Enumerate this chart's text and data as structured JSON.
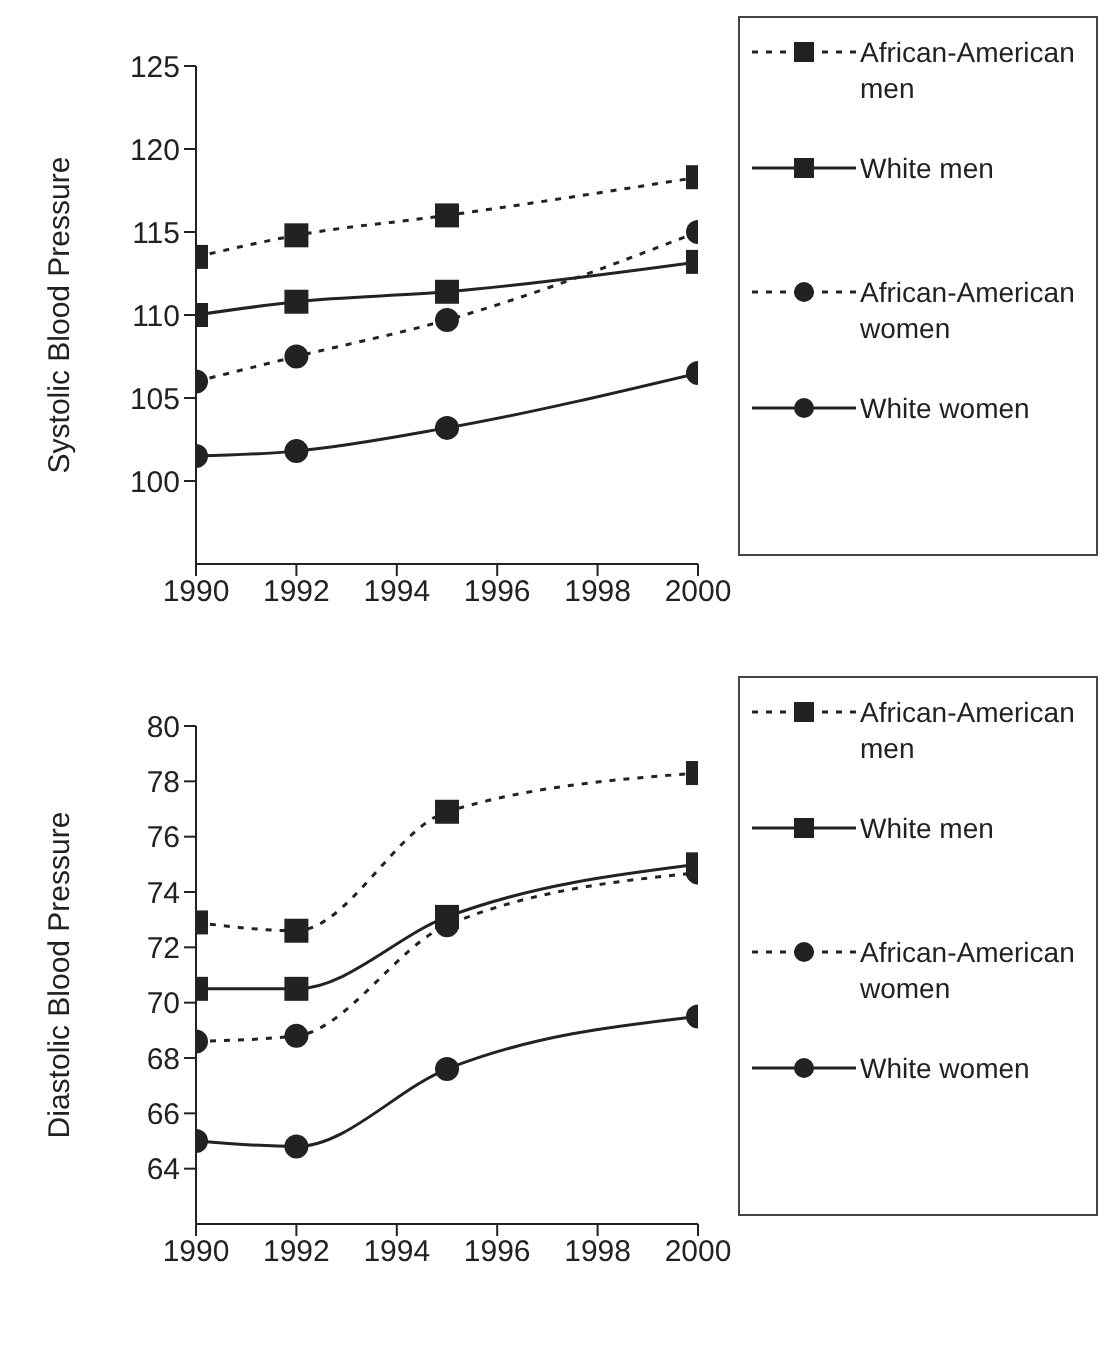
{
  "chart_data": [
    {
      "type": "line",
      "ylabel": "Systolic Blood Pressure",
      "x": [
        1990,
        1992,
        1995,
        2000
      ],
      "xlim": [
        1990,
        2000
      ],
      "xticks": [
        1990,
        1992,
        1994,
        1996,
        1998,
        2000
      ],
      "ylim": [
        95,
        125
      ],
      "yticks": [
        100,
        105,
        110,
        115,
        120,
        125
      ],
      "legend": "right",
      "series": [
        {
          "name": "African-American men",
          "color": "#222222",
          "values": [
            113.5,
            114.8,
            116,
            118.3
          ],
          "line_style": "dotted",
          "marker": "square"
        },
        {
          "name": "White men",
          "color": "#222222",
          "values": [
            110,
            110.8,
            111.4,
            113.2
          ],
          "line_style": "solid",
          "marker": "square"
        },
        {
          "name": "African-American women",
          "color": "#222222",
          "values": [
            106,
            107.5,
            109.7,
            115
          ],
          "line_style": "dotted",
          "marker": "circle"
        },
        {
          "name": "White women",
          "color": "#222222",
          "values": [
            101.5,
            101.8,
            103.2,
            106.5
          ],
          "line_style": "solid",
          "marker": "circle"
        }
      ]
    },
    {
      "type": "line",
      "ylabel": "Diastolic Blood Pressure",
      "x": [
        1990,
        1992,
        1995,
        2000
      ],
      "xlim": [
        1990,
        2000
      ],
      "xticks": [
        1990,
        1992,
        1994,
        1996,
        1998,
        2000
      ],
      "ylim": [
        62,
        80
      ],
      "yticks": [
        64,
        66,
        68,
        70,
        72,
        74,
        76,
        78,
        80
      ],
      "legend": "right",
      "series": [
        {
          "name": "African-American men",
          "color": "#222222",
          "values": [
            72.9,
            72.6,
            76.9,
            78.3
          ],
          "line_style": "dotted",
          "marker": "square"
        },
        {
          "name": "White men",
          "color": "#222222",
          "values": [
            70.5,
            70.5,
            73.1,
            75.0
          ],
          "line_style": "solid",
          "marker": "square"
        },
        {
          "name": "African-American women",
          "color": "#222222",
          "values": [
            68.6,
            68.8,
            72.8,
            74.7
          ],
          "line_style": "dotted",
          "marker": "circle"
        },
        {
          "name": "White women",
          "color": "#222222",
          "values": [
            65.0,
            64.8,
            67.6,
            69.5
          ],
          "line_style": "solid",
          "marker": "circle"
        }
      ]
    }
  ]
}
